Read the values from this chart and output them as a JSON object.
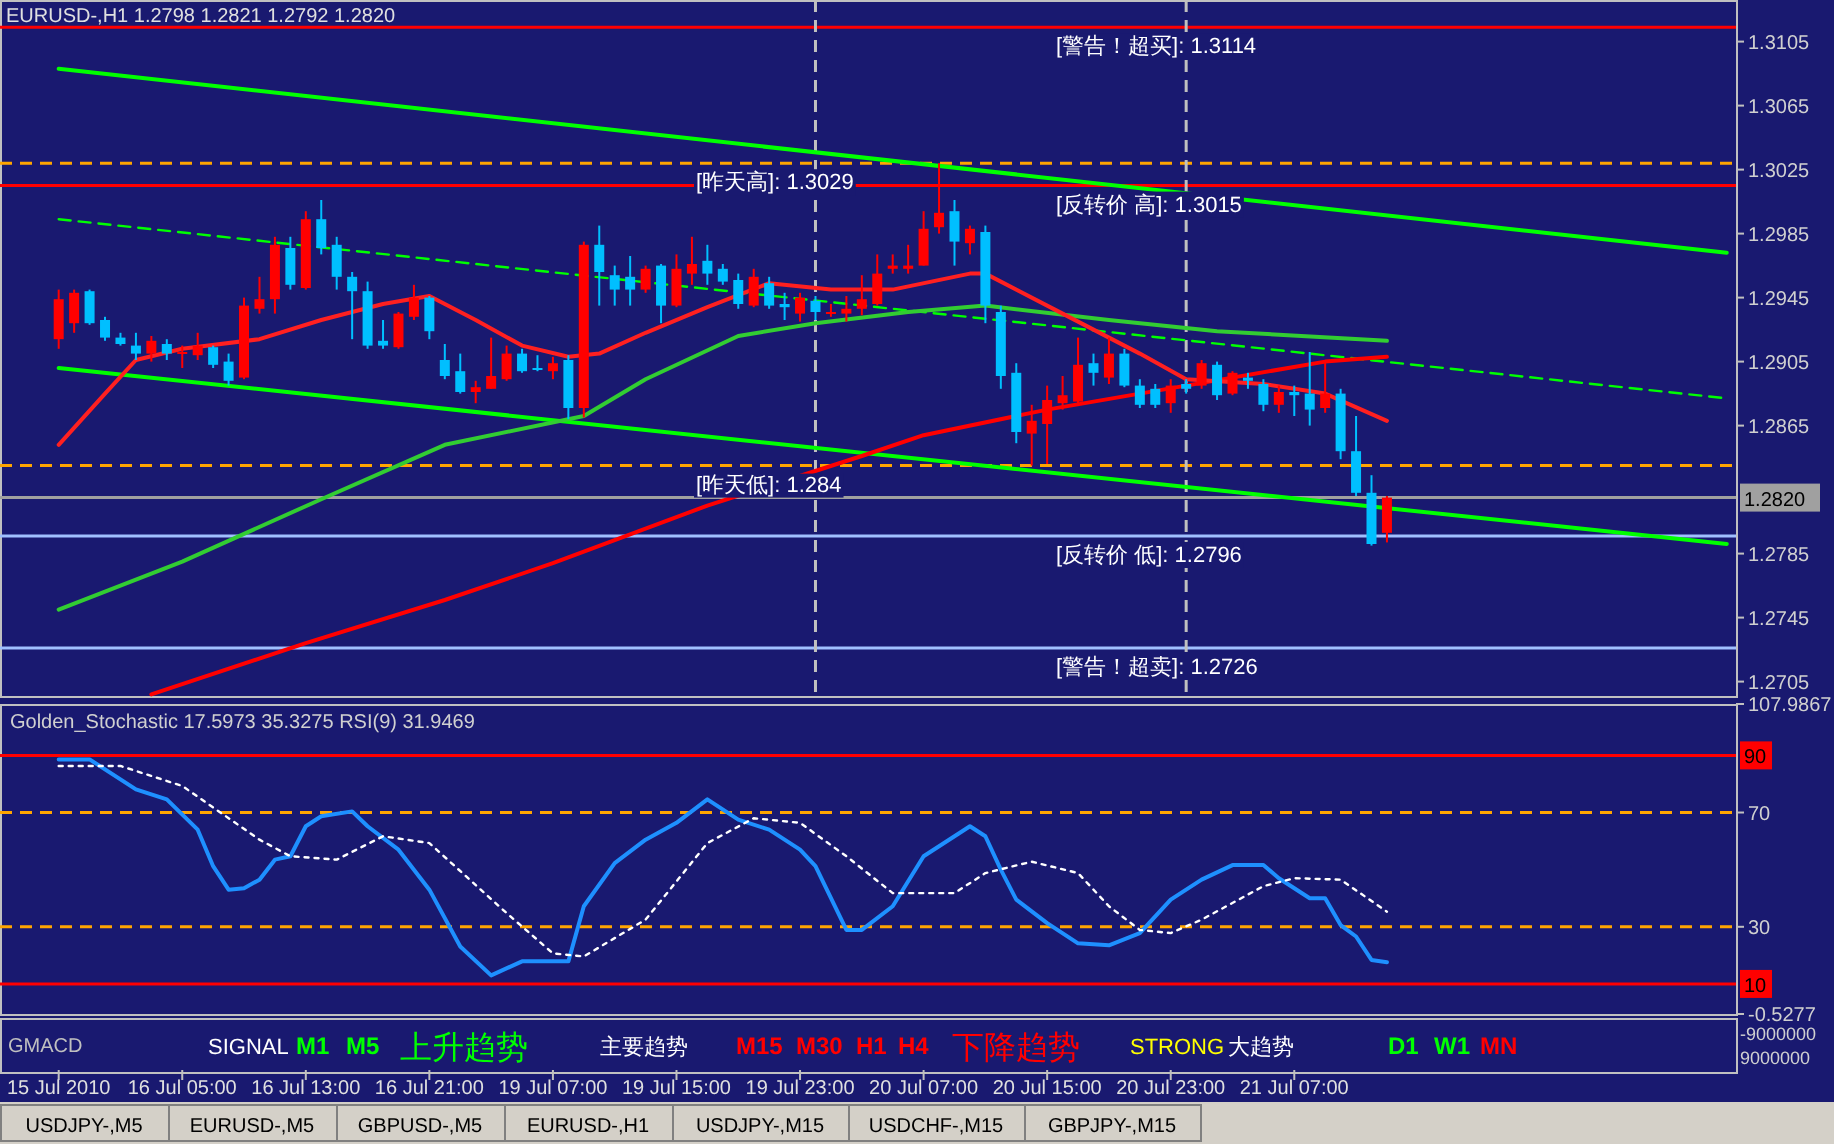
{
  "chart_data": [
    {
      "type": "candlestick",
      "title": "EURUSD-,H1  1.2798 1.2821 1.2792 1.2820",
      "categories": [
        null,
        null,
        null,
        null,
        null,
        null,
        null,
        null,
        null,
        null,
        null,
        null,
        null,
        null,
        null,
        null,
        null,
        null,
        null,
        null,
        null,
        null,
        null,
        null,
        null,
        null,
        null,
        null,
        null,
        null,
        null,
        null,
        null,
        null,
        null,
        null,
        null,
        null,
        null,
        null,
        null,
        null,
        null,
        null,
        null,
        null,
        null,
        null,
        null,
        null,
        null,
        null,
        null,
        null,
        null,
        null,
        null,
        null,
        null,
        null,
        null,
        null,
        null,
        null,
        null,
        null,
        null,
        null,
        null,
        null,
        null,
        null,
        null,
        null,
        null,
        null,
        null,
        null,
        null,
        null,
        null,
        null,
        null,
        null,
        null,
        null,
        null,
        null,
        null,
        null,
        null,
        null,
        null,
        null,
        null,
        null,
        null,
        null,
        null,
        null,
        null,
        null,
        null,
        null,
        null,
        null,
        null,
        null,
        null
      ],
      "ohlc": [
        [
          1.2919,
          1.295,
          1.2913,
          1.2944
        ],
        [
          1.2929,
          1.295,
          1.2923,
          1.2948
        ],
        [
          1.2949,
          1.295,
          1.2928,
          1.2929
        ],
        [
          1.2931,
          1.2933,
          1.2918,
          1.292
        ],
        [
          1.292,
          1.2923,
          1.2915,
          1.2916
        ],
        [
          1.2915,
          1.2923,
          1.2906,
          1.291
        ],
        [
          1.291,
          1.2921,
          1.2905,
          1.2918
        ],
        [
          1.2916,
          1.2919,
          1.2906,
          1.291
        ],
        [
          1.291,
          1.2915,
          1.2901,
          1.2911
        ],
        [
          1.2909,
          1.2923,
          1.2906,
          1.2915
        ],
        [
          1.2914,
          1.2915,
          1.2901,
          1.2903
        ],
        [
          1.2905,
          1.291,
          1.289,
          1.2893
        ],
        [
          1.2895,
          1.2945,
          1.2894,
          1.294
        ],
        [
          1.2938,
          1.2958,
          1.2935,
          1.2944
        ],
        [
          1.2944,
          1.2983,
          1.2935,
          1.2978
        ],
        [
          1.2976,
          1.2983,
          1.295,
          1.2953
        ],
        [
          1.2951,
          1.2999,
          1.295,
          1.2994
        ],
        [
          1.2994,
          1.3006,
          1.2972,
          1.2976
        ],
        [
          1.2978,
          1.2983,
          1.295,
          1.2958
        ],
        [
          1.2958,
          1.2961,
          1.2919,
          1.2949
        ],
        [
          1.2949,
          1.2955,
          1.2913,
          1.2915
        ],
        [
          1.2918,
          1.2931,
          1.2913,
          1.2915
        ],
        [
          1.2914,
          1.2936,
          1.2913,
          1.2935
        ],
        [
          1.2933,
          1.2953,
          1.2931,
          1.2945
        ],
        [
          1.2945,
          1.2946,
          1.2919,
          1.2924
        ],
        [
          1.2906,
          1.2916,
          1.2894,
          1.2896
        ],
        [
          1.2899,
          1.291,
          1.2885,
          1.2886
        ],
        [
          1.2886,
          1.2893,
          1.2879,
          1.2889
        ],
        [
          1.2888,
          1.292,
          1.2888,
          1.2896
        ],
        [
          1.2894,
          1.2915,
          1.2893,
          1.291
        ],
        [
          1.291,
          1.2913,
          1.2898,
          1.2899
        ],
        [
          1.2901,
          1.2909,
          1.2899,
          1.29
        ],
        [
          1.2899,
          1.2908,
          1.2894,
          1.2904
        ],
        [
          1.2906,
          1.2909,
          1.2869,
          1.2876
        ],
        [
          1.2876,
          1.298,
          1.287,
          1.2978
        ],
        [
          1.2978,
          1.299,
          1.294,
          1.2961
        ],
        [
          1.2959,
          1.2965,
          1.294,
          1.295
        ],
        [
          1.2958,
          1.2971,
          1.294,
          1.295
        ],
        [
          1.295,
          1.2965,
          1.2948,
          1.2963
        ],
        [
          1.2965,
          1.2966,
          1.2929,
          1.294
        ],
        [
          1.294,
          1.2972,
          1.2939,
          1.2963
        ],
        [
          1.296,
          1.2983,
          1.2953,
          1.2966
        ],
        [
          1.2968,
          1.2978,
          1.2953,
          1.296
        ],
        [
          1.2963,
          1.2966,
          1.2953,
          1.2955
        ],
        [
          1.2956,
          1.296,
          1.2938,
          1.2941
        ],
        [
          1.294,
          1.2963,
          1.2939,
          1.2958
        ],
        [
          1.2954,
          1.2958,
          1.2938,
          1.294
        ],
        [
          1.2941,
          1.2948,
          1.2931,
          1.2939
        ],
        [
          1.2935,
          1.2948,
          1.293,
          1.2945
        ],
        [
          1.2943,
          1.2946,
          1.2931,
          1.2936
        ],
        [
          1.2935,
          1.2941,
          1.2933,
          1.2936
        ],
        [
          1.2935,
          1.2946,
          1.293,
          1.2938
        ],
        [
          1.2938,
          1.2959,
          1.2934,
          1.2944
        ],
        [
          1.2941,
          1.2972,
          1.294,
          1.296
        ],
        [
          1.2963,
          1.2972,
          1.296,
          1.2965
        ],
        [
          1.2963,
          1.2978,
          1.296,
          1.2965
        ],
        [
          1.2965,
          1.2999,
          1.2965,
          1.2988
        ],
        [
          1.2989,
          1.3029,
          1.2985,
          1.2998
        ],
        [
          1.2999,
          1.3006,
          1.2965,
          1.298
        ],
        [
          1.2979,
          1.299,
          1.2972,
          1.2988
        ],
        [
          1.2986,
          1.299,
          1.2929,
          1.294
        ],
        [
          1.2936,
          1.294,
          1.2888,
          1.2896
        ],
        [
          1.2898,
          1.2904,
          1.2854,
          1.2861
        ],
        [
          1.286,
          1.2878,
          1.284,
          1.2868
        ],
        [
          1.2866,
          1.289,
          1.2841,
          1.2881
        ],
        [
          1.2879,
          1.2896,
          1.2875,
          1.2884
        ],
        [
          1.288,
          1.292,
          1.2878,
          1.2903
        ],
        [
          1.2904,
          1.291,
          1.289,
          1.2898
        ],
        [
          1.2895,
          1.292,
          1.2891,
          1.291
        ],
        [
          1.291,
          1.2913,
          1.2889,
          1.289
        ],
        [
          1.289,
          1.2894,
          1.2876,
          1.2878
        ],
        [
          1.2888,
          1.2891,
          1.2876,
          1.2878
        ],
        [
          1.2879,
          1.2894,
          1.2873,
          1.289
        ],
        [
          1.2891,
          1.2894,
          1.2885,
          1.2888
        ],
        [
          1.289,
          1.2906,
          1.2888,
          1.2904
        ],
        [
          1.2903,
          1.2905,
          1.2881,
          1.2884
        ],
        [
          1.2885,
          1.2899,
          1.2884,
          1.2898
        ],
        [
          1.2895,
          1.2898,
          1.2888,
          1.2893
        ],
        [
          1.2891,
          1.2894,
          1.2874,
          1.2878
        ],
        [
          1.2878,
          1.289,
          1.2873,
          1.2886
        ],
        [
          1.2886,
          1.289,
          1.2871,
          1.2884
        ],
        [
          1.2885,
          1.2911,
          1.2865,
          1.2875
        ],
        [
          1.2876,
          1.2906,
          1.2873,
          1.2885
        ],
        [
          1.2885,
          1.2888,
          1.2844,
          1.2849
        ],
        [
          1.2849,
          1.2871,
          1.2821,
          1.2823
        ],
        [
          1.2823,
          1.2834,
          1.279,
          1.2791
        ],
        [
          1.2798,
          1.2821,
          1.2792,
          1.282
        ],
        null,
        null,
        null,
        null,
        null,
        null,
        null,
        null,
        null,
        null,
        null,
        null,
        null,
        null,
        null,
        null,
        null,
        null,
        null,
        null,
        null,
        null
      ],
      "series": [
        {
          "type": "line",
          "color": "#00ff00",
          "line_style": "solid",
          "values": [
            1.3088,
            null,
            null,
            null,
            null,
            null,
            null,
            null,
            null,
            null,
            null,
            null,
            null,
            null,
            null,
            null,
            null,
            null,
            null,
            null,
            null,
            null,
            null,
            null,
            null,
            null,
            null,
            null,
            null,
            null,
            null,
            null,
            null,
            null,
            null,
            null,
            null,
            null,
            null,
            null,
            null,
            null,
            null,
            null,
            null,
            null,
            null,
            null,
            null,
            null,
            null,
            null,
            null,
            null,
            null,
            null,
            null,
            null,
            null,
            null,
            null,
            null,
            null,
            null,
            null,
            null,
            null,
            null,
            null,
            null,
            null,
            null,
            null,
            null,
            null,
            null,
            null,
            null,
            null,
            null,
            null,
            null,
            null,
            null,
            null,
            null,
            null,
            null,
            null,
            null,
            null,
            null,
            null,
            null,
            null,
            null,
            null,
            null,
            null,
            null,
            null,
            null,
            null,
            null,
            null,
            null,
            null,
            null,
            1.2973
          ]
        },
        {
          "type": "line",
          "color": "#00ff00",
          "line_style": "solid",
          "values": [
            1.2901,
            null,
            null,
            null,
            null,
            null,
            null,
            null,
            null,
            null,
            null,
            null,
            null,
            null,
            null,
            null,
            null,
            null,
            null,
            null,
            null,
            null,
            null,
            null,
            null,
            null,
            null,
            null,
            null,
            null,
            null,
            null,
            null,
            null,
            null,
            null,
            null,
            null,
            null,
            null,
            null,
            null,
            null,
            null,
            null,
            null,
            null,
            null,
            null,
            null,
            null,
            null,
            null,
            null,
            null,
            null,
            null,
            null,
            null,
            null,
            null,
            null,
            null,
            null,
            null,
            null,
            null,
            null,
            null,
            null,
            null,
            null,
            null,
            null,
            null,
            null,
            null,
            null,
            null,
            null,
            null,
            null,
            null,
            null,
            null,
            null,
            null,
            null,
            null,
            null,
            null,
            null,
            null,
            null,
            null,
            null,
            null,
            null,
            null,
            null,
            null,
            null,
            null,
            null,
            null,
            null,
            null,
            null,
            1.2791
          ]
        },
        {
          "type": "line",
          "color": "#00ff00",
          "line_style": "dashed",
          "values": [
            1.2994,
            null,
            null,
            null,
            null,
            null,
            null,
            null,
            null,
            null,
            null,
            null,
            null,
            null,
            null,
            null,
            null,
            null,
            null,
            null,
            null,
            null,
            null,
            null,
            null,
            null,
            null,
            null,
            null,
            null,
            null,
            null,
            null,
            null,
            null,
            null,
            null,
            null,
            null,
            null,
            null,
            null,
            null,
            null,
            null,
            null,
            null,
            null,
            null,
            null,
            null,
            null,
            null,
            null,
            null,
            null,
            null,
            null,
            null,
            null,
            null,
            null,
            null,
            null,
            null,
            null,
            null,
            null,
            null,
            null,
            null,
            null,
            null,
            null,
            null,
            null,
            null,
            null,
            null,
            null,
            null,
            null,
            null,
            null,
            null,
            null,
            null,
            null,
            null,
            null,
            null,
            null,
            null,
            null,
            null,
            null,
            null,
            null,
            null,
            null,
            null,
            null,
            null,
            null,
            null,
            null,
            null,
            null,
            1.2882
          ]
        },
        {
          "type": "line",
          "color": "#32cd32",
          "line_style": "solid",
          "values": [
            1.275,
            null,
            null,
            null,
            null,
            null,
            null,
            null,
            1.278,
            null,
            null,
            null,
            null,
            null,
            null,
            null,
            null,
            1.2819,
            null,
            null,
            null,
            null,
            null,
            null,
            null,
            1.2853,
            null,
            null,
            null,
            null,
            null,
            null,
            null,
            null,
            1.2871,
            null,
            null,
            null,
            1.2894,
            null,
            null,
            null,
            null,
            null,
            1.2921,
            null,
            null,
            null,
            null,
            1.2929,
            null,
            null,
            null,
            null,
            null,
            1.2936,
            null,
            null,
            null,
            null,
            1.294,
            null,
            null,
            null,
            null,
            null,
            null,
            null,
            1.2931,
            null,
            null,
            null,
            null,
            null,
            null,
            1.2924,
            null,
            null,
            null,
            null,
            null,
            null,
            null,
            null,
            null,
            null,
            1.2918,
            null,
            null,
            null,
            null,
            null,
            null,
            null,
            null,
            null,
            null,
            null,
            null,
            null,
            null,
            null,
            null,
            null,
            null,
            null,
            null,
            null,
            null
          ]
        },
        {
          "type": "line",
          "color": "#ff0000",
          "line_style": "solid",
          "values": [
            null,
            null,
            null,
            null,
            null,
            null,
            1.2697,
            null,
            null,
            null,
            null,
            null,
            null,
            null,
            null,
            null,
            1.2729,
            null,
            null,
            null,
            null,
            null,
            null,
            null,
            null,
            1.2756,
            null,
            null,
            null,
            null,
            null,
            null,
            1.2779,
            null,
            null,
            null,
            null,
            null,
            null,
            null,
            null,
            null,
            1.2815,
            null,
            null,
            null,
            null,
            null,
            null,
            null,
            null,
            null,
            1.2846,
            null,
            null,
            null,
            1.2859,
            null,
            null,
            null,
            null,
            null,
            null,
            null,
            1.2875,
            null,
            null,
            null,
            null,
            null,
            null,
            null,
            null,
            1.289,
            null,
            null,
            null,
            null,
            null,
            null,
            null,
            null,
            1.2905,
            null,
            null,
            null,
            1.2908,
            null,
            null,
            null,
            null,
            null,
            null,
            null,
            null,
            null,
            null,
            null,
            null,
            null,
            null,
            null,
            null,
            null,
            null,
            null,
            null,
            null,
            null
          ]
        },
        {
          "type": "line",
          "color": "#ff2020",
          "line_style": "solid",
          "values": [
            1.2853,
            null,
            null,
            1.2885,
            null,
            1.2906,
            null,
            null,
            1.2913,
            null,
            null,
            null,
            null,
            1.2919,
            null,
            null,
            null,
            1.2931,
            null,
            null,
            null,
            1.2941,
            null,
            null,
            1.2946,
            null,
            null,
            1.2931,
            null,
            null,
            1.2915,
            null,
            null,
            1.2908,
            null,
            1.291,
            null,
            null,
            1.2923,
            null,
            null,
            null,
            1.2939,
            null,
            null,
            null,
            1.2954,
            null,
            null,
            null,
            1.295,
            null,
            null,
            null,
            1.295,
            null,
            null,
            null,
            null,
            1.296,
            1.296,
            null,
            null,
            null,
            null,
            1.2935,
            null,
            null,
            null,
            null,
            1.291,
            null,
            null,
            1.2894,
            null,
            null,
            null,
            null,
            1.2891,
            null,
            null,
            null,
            1.2885,
            null,
            null,
            null,
            1.2868,
            null,
            null,
            null,
            null,
            null,
            null,
            null,
            null,
            null,
            null,
            null,
            null,
            null,
            null,
            null,
            null,
            null,
            null,
            null,
            null,
            null,
            null
          ]
        }
      ],
      "ylim": [
        1.2696,
        1.3131
      ],
      "yticks": [
        1.3105,
        1.3065,
        1.3025,
        1.2985,
        1.2945,
        1.2905,
        1.2865,
        1.2785,
        1.2745,
        1.2705
      ],
      "ref_lines": [
        {
          "axis": "y",
          "value": 1.3114,
          "label": "[警告！超买]: 1.3114",
          "color": "#ff0000",
          "line_style": "solid"
        },
        {
          "axis": "y",
          "value": 1.3029,
          "label": "[昨天高]: 1.3029",
          "color": "#ffa500",
          "line_style": "dashed"
        },
        {
          "axis": "y",
          "value": 1.3015,
          "label": "[反转价 高]: 1.3015",
          "color": "#ff0000",
          "line_style": "solid"
        },
        {
          "axis": "y",
          "value": 1.284,
          "label": "[昨天低]: 1.284",
          "color": "#ffa500",
          "line_style": "dashed"
        },
        {
          "axis": "y",
          "value": 1.282,
          "label": "1.2820",
          "color": "#a0a0a0",
          "line_style": "solid"
        },
        {
          "axis": "y",
          "value": 1.2796,
          "label": "[反转价 低]: 1.2796",
          "color": "#a0c0ff",
          "line_style": "solid"
        },
        {
          "axis": "y",
          "value": 1.2726,
          "label": "[警告！超卖]: 1.2726",
          "color": "#a0c0ff",
          "line_style": "solid"
        }
      ],
      "annotations": [
        "USDJPY-,M5",
        "EURUSD-,M5",
        "GBPUSD-,M5",
        "EURUSD-,H1",
        "USDJPY-,M15",
        "USDCHF-,M15",
        "GBPJPY-,M15"
      ]
    },
    {
      "type": "line",
      "title": "Golden_Stochastic 17.5973 35.3275  RSI(9) 31.9469",
      "categories": [
        "15 Jul 2010",
        null,
        null,
        null,
        null,
        null,
        null,
        null,
        "16 Jul 05:00",
        null,
        null,
        null,
        null,
        null,
        null,
        null,
        "16 Jul 13:00",
        null,
        null,
        null,
        null,
        null,
        null,
        null,
        "16 Jul 21:00",
        null,
        null,
        null,
        null,
        null,
        null,
        null,
        "19 Jul 07:00",
        null,
        null,
        null,
        null,
        null,
        null,
        null,
        "19 Jul 15:00",
        null,
        null,
        null,
        null,
        null,
        null,
        null,
        "19 Jul 23:00",
        null,
        null,
        null,
        null,
        null,
        null,
        null,
        "20 Jul 07:00",
        null,
        null,
        null,
        null,
        null,
        null,
        null,
        "20 Jul 15:00",
        null,
        null,
        null,
        null,
        null,
        null,
        null,
        "20 Jul 23:00",
        null,
        null,
        null,
        null,
        null,
        null,
        null,
        "21 Jul 07:00",
        null,
        null,
        null,
        null,
        null,
        null,
        null,
        null,
        null,
        null,
        null,
        null,
        null,
        null,
        null,
        null,
        null,
        null,
        null,
        null,
        null,
        null,
        null,
        null,
        null,
        null,
        null,
        null
      ],
      "series": [
        {
          "color": "#1e90ff",
          "line_style": "solid",
          "values": [
            88.6,
            null,
            88.6,
            null,
            null,
            78.1,
            null,
            74.6,
            null,
            64.0,
            51.2,
            43.0,
            43.5,
            46.5,
            53.5,
            54.7,
            65.2,
            68.7,
            null,
            70.4,
            65.2,
            null,
            57.0,
            null,
            43.0,
            null,
            23.1,
            null,
            13.0,
            null,
            17.9,
            null,
            null,
            17.9,
            37.2,
            null,
            52.3,
            null,
            60.5,
            null,
            66.4,
            null,
            74.6,
            null,
            67.5,
            null,
            64.0,
            null,
            57.0,
            51.2,
            null,
            28.9,
            28.9,
            null,
            37.2,
            null,
            54.7,
            null,
            61.7,
            65.2,
            61.7,
            50.0,
            39.5,
            null,
            31.3,
            null,
            24.2,
            null,
            23.5,
            null,
            27.8,
            null,
            39.5,
            null,
            46.5,
            null,
            51.6,
            null,
            51.6,
            47.0,
            null,
            40.0,
            40.0,
            30.6,
            26.6,
            18.4,
            17.6,
            null,
            null,
            null,
            null,
            null,
            null,
            null,
            null,
            null,
            null,
            null,
            null,
            null,
            null,
            null,
            null,
            null,
            null,
            null,
            null,
            null,
            null
          ]
        },
        {
          "color": "#ffffff",
          "line_style": "dotted",
          "values": [
            86.3,
            null,
            null,
            null,
            86.3,
            null,
            null,
            null,
            79.3,
            null,
            null,
            null,
            null,
            60.5,
            null,
            54.7,
            null,
            null,
            53.5,
            null,
            null,
            61.7,
            null,
            null,
            59.3,
            null,
            null,
            null,
            null,
            34.8,
            null,
            null,
            20.7,
            null,
            19.6,
            null,
            null,
            null,
            32.5,
            null,
            null,
            null,
            59.3,
            null,
            null,
            68.0,
            null,
            null,
            66.4,
            null,
            null,
            54.7,
            null,
            null,
            41.8,
            null,
            null,
            null,
            41.8,
            null,
            48.8,
            null,
            null,
            52.8,
            null,
            null,
            48.8,
            null,
            37.2,
            null,
            28.9,
            null,
            27.8,
            null,
            32.5,
            null,
            null,
            null,
            44.2,
            null,
            47.0,
            null,
            null,
            46.5,
            null,
            null,
            35.3,
            null,
            null,
            null,
            null,
            null,
            null,
            null,
            null,
            null,
            null,
            null,
            null,
            null,
            null,
            null,
            null,
            null,
            null,
            null,
            null,
            null,
            null
          ]
        }
      ],
      "ylim": [
        -0.5277,
        107.9867
      ],
      "yticks": [
        107.9867,
        70,
        30,
        -0.5277
      ],
      "ref_lines": [
        {
          "axis": "y",
          "value": 90,
          "label": "90",
          "color": "#ff0000",
          "line_style": "solid"
        },
        {
          "axis": "y",
          "value": 70,
          "color": "#ffa500",
          "line_style": "dashed"
        },
        {
          "axis": "y",
          "value": 30,
          "color": "#ffa500",
          "line_style": "dashed"
        },
        {
          "axis": "y",
          "value": 10,
          "label": "10",
          "color": "#ff0000",
          "line_style": "solid"
        }
      ]
    },
    {
      "type": "other",
      "annotations": [
        "GMACD",
        "SIGNAL",
        "M1",
        "M5",
        "上升趋势",
        "主要趋势",
        "M15",
        "M30",
        "H1",
        "H4",
        "下降趋势",
        "STRONG",
        "大趋势",
        "D1",
        "W1",
        "MN",
        "-9000000",
        "9000000"
      ]
    }
  ]
}
